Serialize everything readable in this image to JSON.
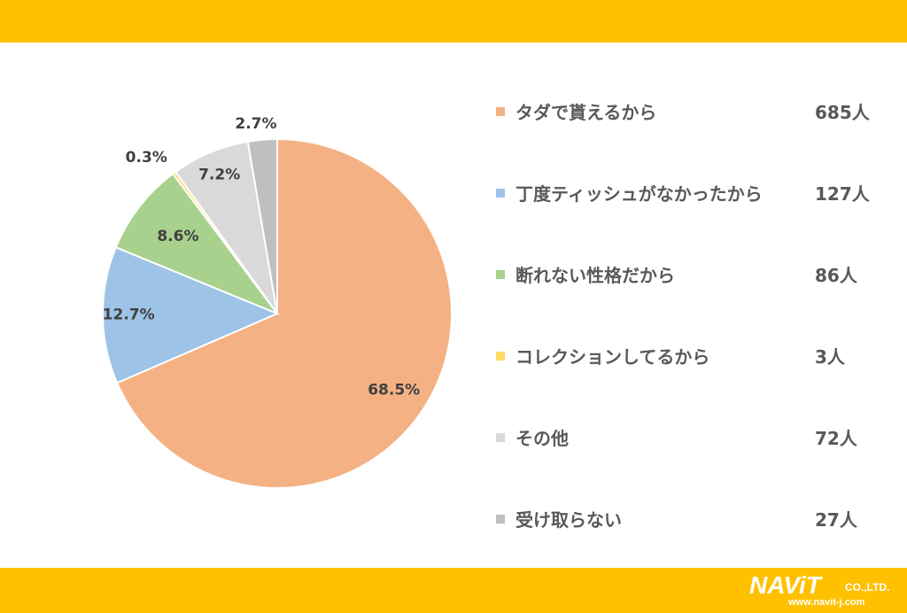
{
  "colors": {
    "band": "#FFC000",
    "logo_text": "#FFFFFF"
  },
  "logo": {
    "main": "NAViT",
    "suffix": "CO.,LTD.",
    "url": "www.navit-j.com"
  },
  "chart_data": {
    "type": "pie",
    "start": "top, clockwise",
    "legend_position": "right",
    "slices": [
      {
        "label": "タダで貰えるから",
        "value": 685,
        "count_label": "685人",
        "percent_label": "68.5%",
        "color": "#F4B183"
      },
      {
        "label": "丁度ティッシュがなかったから",
        "value": 127,
        "count_label": "127人",
        "percent_label": "12.7%",
        "color": "#9DC3E6"
      },
      {
        "label": "断れない性格だから",
        "value": 86,
        "count_label": "86人",
        "percent_label": "8.6%",
        "color": "#A9D18E"
      },
      {
        "label": "コレクションしてるから",
        "value": 3,
        "count_label": "3人",
        "percent_label": "0.3%",
        "color": "#FFD966"
      },
      {
        "label": "その他",
        "value": 72,
        "count_label": "72人",
        "percent_label": "7.2%",
        "color": "#D9D9D9"
      },
      {
        "label": "受け取らない",
        "value": 27,
        "count_label": "27人",
        "percent_label": "2.7%",
        "color": "#BFBFBF"
      }
    ]
  }
}
